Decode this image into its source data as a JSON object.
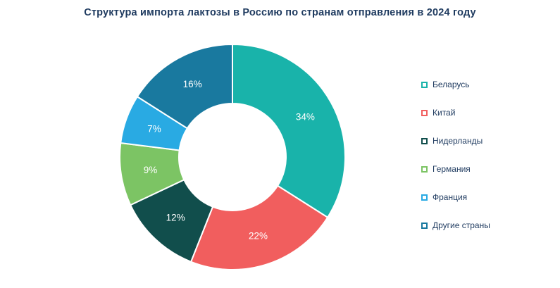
{
  "title": "Структура импорта лактозы в Россию по странам отправления в 2024 году",
  "chart_data": {
    "type": "pie",
    "subtype": "donut",
    "title": "Структура импорта лактозы в Россию по странам отправления в 2024 году",
    "legend_position": "right",
    "label_format": "percent",
    "total_percent": 100,
    "start_angle_deg": 0,
    "direction": "clockwise",
    "segments": [
      {
        "label": "Беларусь",
        "value": 34,
        "display": "34%",
        "color": "#19b3aa"
      },
      {
        "label": "Китай",
        "value": 22,
        "display": "22%",
        "color": "#f15e5e"
      },
      {
        "label": "Нидерланды",
        "value": 12,
        "display": "12%",
        "color": "#114e4c"
      },
      {
        "label": "Германия",
        "value": 9,
        "display": "9%",
        "color": "#7cc464"
      },
      {
        "label": "Франция",
        "value": 7,
        "display": "7%",
        "color": "#29aae3"
      },
      {
        "label": "Другие страны",
        "value": 16,
        "display": "16%",
        "color": "#19799f"
      }
    ],
    "colors": {
      "title_text": "#1e3a5f",
      "legend_text": "#1e3a5f",
      "segment_label_text": "#ffffff",
      "segment_gap_stroke": "#ffffff",
      "background": "#ffffff"
    }
  }
}
